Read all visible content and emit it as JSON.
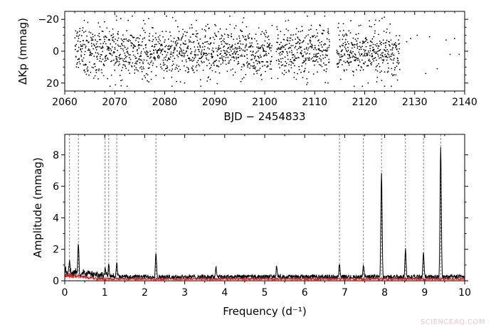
{
  "chart_data": [
    {
      "type": "scatter",
      "xlabel": "BJD − 2454833",
      "ylabel": "ΔKp (mmag)",
      "xlim": [
        2060,
        2140
      ],
      "ylim": [
        -25,
        25
      ],
      "y_inverted": true,
      "xticks": [
        2060,
        2070,
        2080,
        2090,
        2100,
        2110,
        2120,
        2130,
        2140
      ],
      "yticks": [
        -20,
        0,
        20
      ],
      "ytick_labels": [
        "−20",
        "0",
        "20"
      ],
      "point_color": "#000000",
      "dense_time_range": [
        2062,
        2127
      ],
      "typical_scatter_mmag": 8,
      "sparse_points": [
        {
          "x": 2128.4,
          "y": -6
        },
        {
          "x": 2129.2,
          "y": -8
        },
        {
          "x": 2130.5,
          "y": -10
        },
        {
          "x": 2132.2,
          "y": 14
        },
        {
          "x": 2133.0,
          "y": -9
        },
        {
          "x": 2134.5,
          "y": 11
        },
        {
          "x": 2136.3,
          "y": -7
        },
        {
          "x": 2137.1,
          "y": 2
        },
        {
          "x": 2138.0,
          "y": -8
        },
        {
          "x": 2138.9,
          "y": 2
        }
      ]
    },
    {
      "type": "line",
      "xlabel": "Frequency (d⁻¹)",
      "ylabel": "Amplitude (mmag)",
      "xlim": [
        0,
        10
      ],
      "ylim": [
        0,
        9.3
      ],
      "xticks": [
        0,
        1,
        2,
        3,
        4,
        5,
        6,
        7,
        8,
        9,
        10
      ],
      "yticks": [
        0,
        2,
        4,
        6,
        8
      ],
      "series": [
        {
          "color": "#000000",
          "kind": "amplitude spectrum"
        },
        {
          "color": "#d62020",
          "kind": "residual spectrum"
        }
      ],
      "peaks": [
        {
          "x": 0.12,
          "y": 1.2
        },
        {
          "x": 0.34,
          "y": 2.3
        },
        {
          "x": 1.01,
          "y": 0.7
        },
        {
          "x": 1.1,
          "y": 0.9
        },
        {
          "x": 1.3,
          "y": 1.0
        },
        {
          "x": 2.28,
          "y": 1.65
        },
        {
          "x": 3.78,
          "y": 0.75
        },
        {
          "x": 5.3,
          "y": 0.85
        },
        {
          "x": 6.87,
          "y": 1.0
        },
        {
          "x": 7.47,
          "y": 0.9
        },
        {
          "x": 7.92,
          "y": 6.7
        },
        {
          "x": 8.52,
          "y": 1.9
        },
        {
          "x": 8.97,
          "y": 1.7
        },
        {
          "x": 9.4,
          "y": 8.4
        }
      ],
      "marked_frequencies": [
        0.12,
        0.34,
        1.01,
        1.1,
        1.3,
        2.28,
        6.87,
        7.47,
        7.92,
        8.52,
        8.97,
        9.4
      ],
      "noise_level_black": 0.3,
      "noise_level_red": 0.15
    }
  ],
  "watermark": "SCIENCEAQ.COM"
}
